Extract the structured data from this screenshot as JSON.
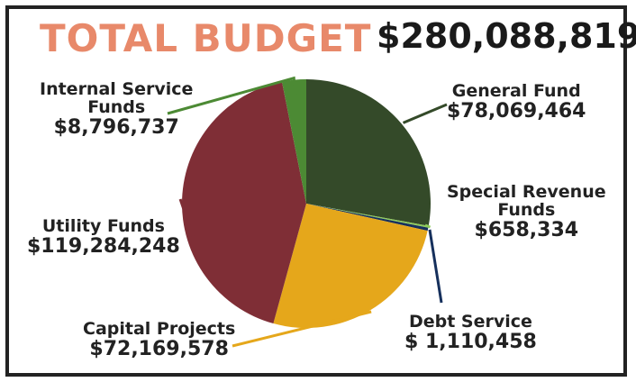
{
  "header": {
    "title": "TOTAL BUDGET",
    "total": "$280,088,819"
  },
  "chart_data": {
    "type": "pie",
    "title": "TOTAL BUDGET",
    "total": "$280,088,819",
    "colors_note": "slice colors",
    "slices": [
      {
        "name": "General Fund",
        "value": 78069464,
        "label": "$78,069,464",
        "color": "#344a29"
      },
      {
        "name": "Special Revenue Funds",
        "value": 658334,
        "label": "$658,334",
        "color": "#8ecb5a"
      },
      {
        "name": "Debt Service",
        "value": 1110458,
        "label": "$ 1,110,458",
        "color": "#16305c"
      },
      {
        "name": "Capital Projects",
        "value": 72169578,
        "label": "$72,169,578",
        "color": "#e5a71b"
      },
      {
        "name": "Utility Funds",
        "value": 119284248,
        "label": "$119,284,248",
        "color": "#7f2e36"
      },
      {
        "name": "Internal Service Funds",
        "value": 8796737,
        "label": "$8,796,737",
        "color": "#4c8a34"
      }
    ]
  },
  "labels": {
    "general": {
      "name": "General Fund",
      "value": "$78,069,464"
    },
    "special": {
      "name1": "Special Revenue",
      "name2": "Funds",
      "value": "$658,334"
    },
    "debt": {
      "name": "Debt Service",
      "value": "$ 1,110,458"
    },
    "capital": {
      "name": "Capital Projects",
      "value": "$72,169,578"
    },
    "utility": {
      "name": "Utility Funds",
      "value": "$119,284,248"
    },
    "internal": {
      "name1": "Internal Service",
      "name2": "Funds",
      "value": "$8,796,737"
    }
  }
}
